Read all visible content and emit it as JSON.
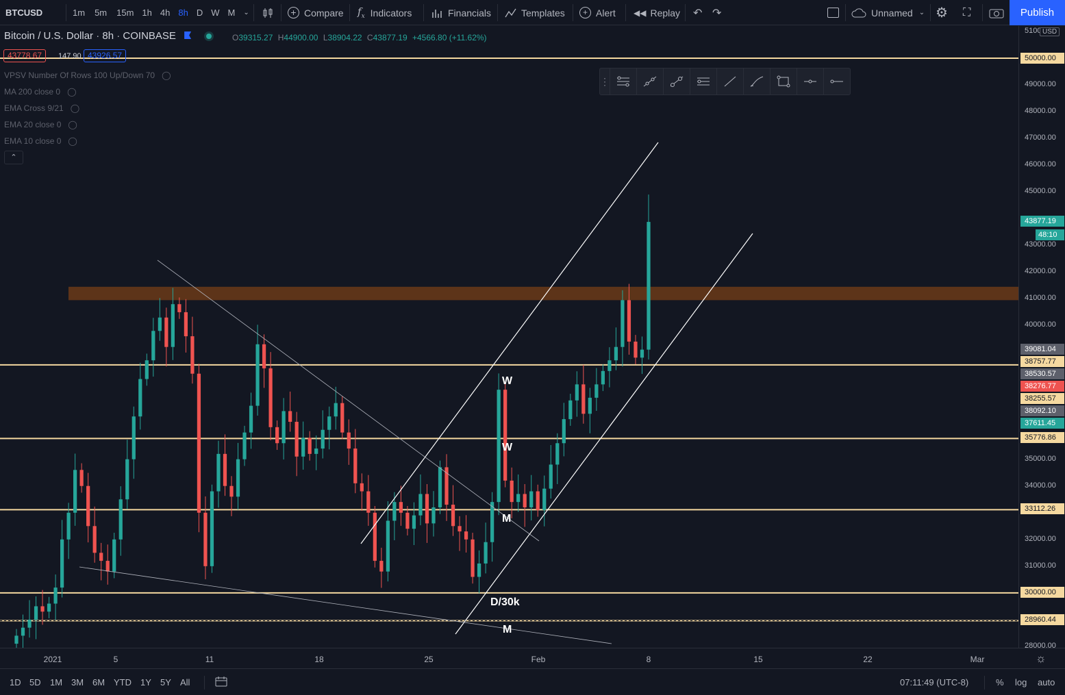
{
  "toolbar": {
    "symbol": "BTCUSD",
    "timeframes": [
      "1m",
      "5m",
      "15m",
      "1h",
      "4h",
      "8h",
      "D",
      "W",
      "M"
    ],
    "active_timeframe": "8h",
    "compare": "Compare",
    "indicators": "Indicators",
    "financials": "Financials",
    "templates": "Templates",
    "alert": "Alert",
    "replay": "Replay",
    "layout_name": "Unnamed",
    "publish": "Publish"
  },
  "legend": {
    "title": "Bitcoin / U.S. Dollar",
    "interval": "8h",
    "exchange": "COINBASE",
    "open_label": "O",
    "open": "39315.27",
    "high_label": "H",
    "high": "44900.00",
    "low_label": "L",
    "low": "38904.22",
    "close_label": "C",
    "close": "43877.19",
    "change": "+4566.80 (+11.62%)",
    "bid": "43778.67",
    "spread": "147.90",
    "ask": "43926.57"
  },
  "indicators": [
    "VPSV Number Of Rows 100 Up/Down 70",
    "MA 200 close 0",
    "EMA Cross 9/21",
    "EMA 20 close 0",
    "EMA 10 close 0"
  ],
  "price_scale": {
    "currency": "USD",
    "ticks": [
      "51000.00",
      "50000.00",
      "49000.00",
      "48000.00",
      "47000.00",
      "46000.00",
      "45000.00",
      "43000.00",
      "42000.00",
      "41000.00",
      "40000.00",
      "35000.00",
      "34000.00",
      "32000.00",
      "31000.00",
      "30000.00",
      "28000.00"
    ],
    "labels": [
      {
        "text": "50000.00",
        "color": "#f5d9a0"
      },
      {
        "text": "43877.19",
        "color": "#26a69a"
      },
      {
        "text": "48:10",
        "color": "#26a69a"
      },
      {
        "text": "39081.04",
        "color": "#5d606b"
      },
      {
        "text": "38757.77",
        "color": "#f5d9a0"
      },
      {
        "text": "38530.57",
        "color": "#5d606b"
      },
      {
        "text": "38276.77",
        "color": "#ef5350"
      },
      {
        "text": "38255.57",
        "color": "#f5d9a0"
      },
      {
        "text": "38092.10",
        "color": "#5d606b"
      },
      {
        "text": "37611.45",
        "color": "#26a69a"
      },
      {
        "text": "35776.86",
        "color": "#f5d9a0"
      },
      {
        "text": "33112.26",
        "color": "#f5d9a0"
      },
      {
        "text": "30000.00",
        "color": "#f5d9a0"
      },
      {
        "text": "28960.44",
        "color": "#f5d9a0"
      }
    ]
  },
  "time_axis": [
    "2021",
    "5",
    "11",
    "18",
    "25",
    "Feb",
    "8",
    "15",
    "22",
    "Mar"
  ],
  "annotations": [
    "W",
    "W",
    "M",
    "D/30k",
    "M"
  ],
  "bottom": {
    "ranges": [
      "1D",
      "5D",
      "1M",
      "3M",
      "6M",
      "YTD",
      "1Y",
      "5Y",
      "All"
    ],
    "clock": "07:11:49 (UTC-8)",
    "percent": "%",
    "log": "log",
    "auto": "auto"
  },
  "chart_data": {
    "type": "candlestick",
    "interval": "8h",
    "horizontal_levels": [
      50000,
      38530.57,
      35776.86,
      33112.26,
      30000,
      28960.44
    ],
    "resistance_zone": [
      40950,
      41450
    ],
    "candles_close_approx": [
      28400,
      28700,
      29000,
      29500,
      29300,
      29600,
      30200,
      32000,
      33000,
      34600,
      34000,
      32500,
      31500,
      31200,
      30800,
      32000,
      33500,
      35000,
      36600,
      38000,
      38700,
      39800,
      40300,
      39200,
      40800,
      40500,
      39600,
      38200,
      33000,
      31000,
      33800,
      35200,
      34000,
      33600,
      35000,
      36000,
      37000,
      39300,
      38400,
      36200,
      35600,
      36800,
      36400,
      35100,
      35800,
      35200,
      35400,
      36100,
      36600,
      37100,
      36000,
      35400,
      34100,
      33800,
      33000,
      31200,
      30800,
      32700,
      33400,
      33000,
      32400,
      32900,
      33700,
      32600,
      33200,
      34700,
      33300,
      32500,
      32300,
      32000,
      30600,
      31100,
      31900,
      33400,
      37600,
      34200,
      33400,
      33700,
      33200,
      33800,
      33100,
      33900,
      34800,
      35600,
      36500,
      37200,
      37800,
      36700,
      37300,
      37800,
      38300,
      38700,
      39200,
      40950,
      39400,
      38800,
      39100,
      43877
    ]
  }
}
